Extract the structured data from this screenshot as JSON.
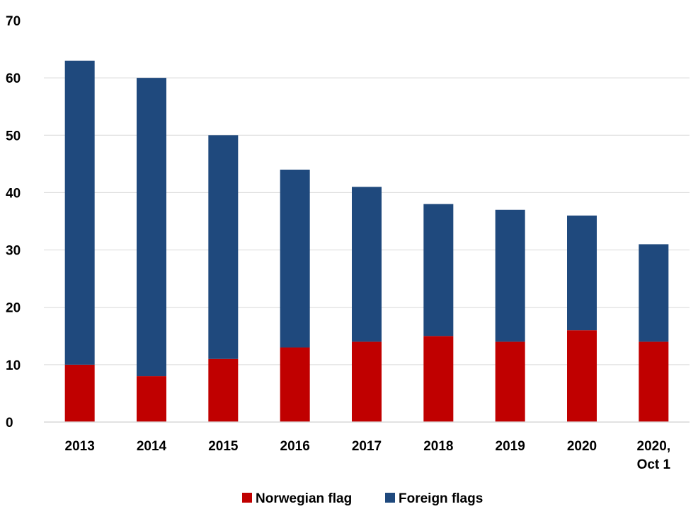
{
  "chart_data": {
    "type": "bar",
    "stacked": true,
    "categories": [
      "2013",
      "2014",
      "2015",
      "2016",
      "2017",
      "2018",
      "2019",
      "2020",
      "2020,\nOct 1"
    ],
    "series": [
      {
        "name": "Norwegian flag",
        "color": "#c00000",
        "values": [
          10,
          8,
          11,
          13,
          14,
          15,
          14,
          16,
          14
        ]
      },
      {
        "name": "Foreign flags",
        "color": "#1f497d",
        "values": [
          53,
          52,
          39,
          31,
          27,
          23,
          23,
          20,
          17
        ]
      }
    ],
    "ylim": [
      0,
      70
    ],
    "yticks": [
      0,
      10,
      20,
      30,
      40,
      50,
      60,
      70
    ],
    "grid": true,
    "legend": "bottom-center",
    "title": "",
    "xlabel": "",
    "ylabel": ""
  }
}
